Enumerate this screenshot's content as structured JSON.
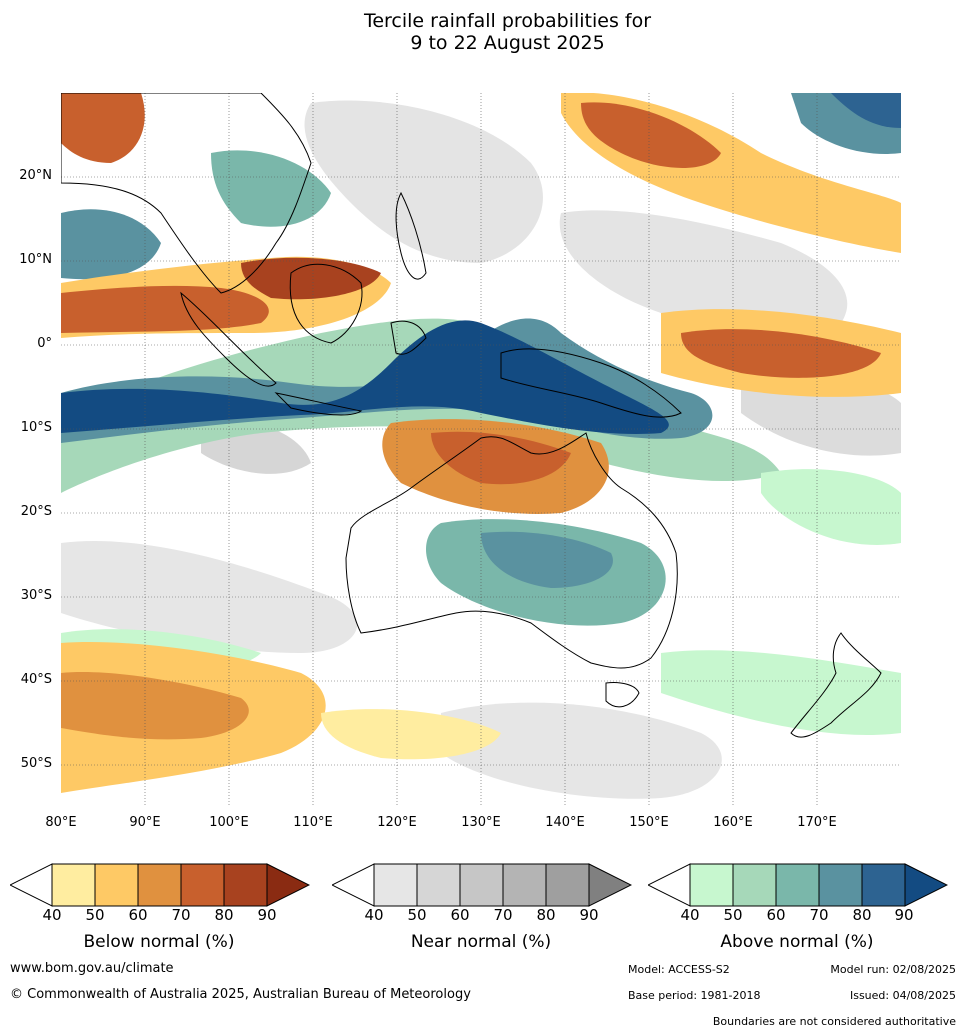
{
  "title_line1": "Tercile rainfall probabilities for",
  "title_line2": "9 to 22 August 2025",
  "lat_labels": [
    "20°N",
    "10°N",
    "0°",
    "10°S",
    "20°S",
    "30°S",
    "40°S",
    "50°S"
  ],
  "lon_labels": [
    "80°E",
    "90°E",
    "100°E",
    "110°E",
    "120°E",
    "130°E",
    "140°E",
    "150°E",
    "160°E",
    "170°E"
  ],
  "colorbars": {
    "below": {
      "title": "Below normal (%)",
      "ticks": [
        "40",
        "50",
        "60",
        "70",
        "80",
        "90"
      ],
      "colors": [
        "#ffeda0",
        "#fec965",
        "#e0913f",
        "#c8602d",
        "#a8421f",
        "#8a2b12"
      ]
    },
    "near": {
      "title": "Near normal (%)",
      "ticks": [
        "40",
        "50",
        "60",
        "70",
        "80",
        "90"
      ],
      "colors": [
        "#e6e6e6",
        "#d6d6d6",
        "#c6c6c6",
        "#b4b4b4",
        "#9f9f9f",
        "#808080"
      ]
    },
    "above": {
      "title": "Above normal (%)",
      "ticks": [
        "40",
        "50",
        "60",
        "70",
        "80",
        "90"
      ],
      "colors": [
        "#c7f7cf",
        "#a6d8b9",
        "#7ab7aa",
        "#5a92a0",
        "#2d6391",
        "#134b82"
      ]
    }
  },
  "footer": {
    "website": "www.bom.gov.au/climate",
    "copyright": "© Commonwealth of Australia 2025, Australian Bureau of Meteorology",
    "model": "Model: ACCESS-S2",
    "model_run": "Model run: 02/08/2025",
    "base_period": "Base period: 1981-2018",
    "issued": "Issued: 04/08/2025",
    "disclaimer": "Boundaries are not considered authoritative"
  }
}
